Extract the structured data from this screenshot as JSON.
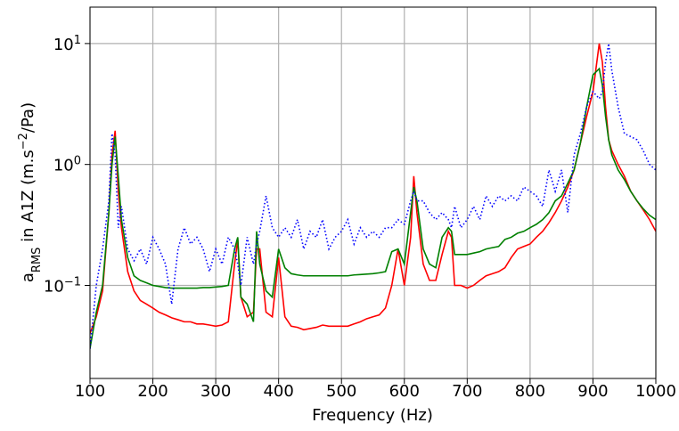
{
  "chart_data": {
    "type": "line",
    "x_label": "Frequency (Hz)",
    "y_label_parts": [
      {
        "text": "a"
      },
      {
        "text": "RMS",
        "style": "sub"
      },
      {
        "text": " in A1Z (m.s"
      },
      {
        "text": "−2",
        "style": "sup"
      },
      {
        "text": "/Pa)"
      }
    ],
    "xlim": [
      100,
      1000
    ],
    "xticks": [
      100,
      200,
      300,
      400,
      500,
      600,
      700,
      800,
      900,
      1000
    ],
    "ylim": [
      0.017,
      20
    ],
    "log_y": true,
    "grid": true,
    "yticks": [
      {
        "value": 0.1,
        "label": "10",
        "exponent": "−1"
      },
      {
        "value": 1,
        "label": "10",
        "exponent": "0"
      },
      {
        "value": 10,
        "label": "10",
        "exponent": "1"
      }
    ],
    "x": [
      100,
      110,
      120,
      130,
      135,
      140,
      145,
      150,
      160,
      170,
      180,
      190,
      200,
      210,
      220,
      230,
      240,
      250,
      260,
      270,
      280,
      290,
      300,
      310,
      320,
      330,
      335,
      340,
      350,
      360,
      365,
      370,
      380,
      390,
      400,
      410,
      420,
      430,
      440,
      450,
      460,
      470,
      480,
      490,
      500,
      510,
      520,
      530,
      540,
      550,
      560,
      570,
      580,
      590,
      600,
      610,
      615,
      620,
      630,
      640,
      650,
      660,
      670,
      675,
      680,
      690,
      700,
      710,
      720,
      730,
      740,
      750,
      760,
      770,
      780,
      790,
      800,
      810,
      820,
      830,
      840,
      850,
      860,
      870,
      880,
      890,
      900,
      910,
      915,
      920,
      925,
      930,
      940,
      950,
      960,
      970,
      980,
      990,
      1000
    ],
    "series": [
      {
        "color": "#ff0000",
        "linestyle": "solid",
        "values": [
          0.04,
          0.055,
          0.09,
          0.4,
          1.2,
          1.9,
          0.6,
          0.3,
          0.13,
          0.09,
          0.075,
          0.07,
          0.065,
          0.06,
          0.057,
          0.054,
          0.052,
          0.05,
          0.05,
          0.048,
          0.048,
          0.047,
          0.046,
          0.047,
          0.05,
          0.15,
          0.24,
          0.08,
          0.055,
          0.06,
          0.2,
          0.2,
          0.06,
          0.055,
          0.17,
          0.055,
          0.046,
          0.045,
          0.043,
          0.044,
          0.045,
          0.047,
          0.046,
          0.046,
          0.046,
          0.046,
          0.048,
          0.05,
          0.053,
          0.055,
          0.057,
          0.065,
          0.1,
          0.2,
          0.1,
          0.25,
          0.8,
          0.4,
          0.15,
          0.11,
          0.11,
          0.18,
          0.28,
          0.25,
          0.1,
          0.1,
          0.095,
          0.1,
          0.11,
          0.12,
          0.125,
          0.13,
          0.14,
          0.17,
          0.2,
          0.21,
          0.22,
          0.25,
          0.28,
          0.33,
          0.4,
          0.5,
          0.65,
          0.9,
          1.5,
          2.5,
          4,
          10,
          7,
          3,
          1.6,
          1.3,
          1.0,
          0.8,
          0.6,
          0.5,
          0.42,
          0.35,
          0.28
        ]
      },
      {
        "color": "#008000",
        "linestyle": "solid",
        "values": [
          0.03,
          0.06,
          0.1,
          0.4,
          1.0,
          1.7,
          0.8,
          0.35,
          0.17,
          0.12,
          0.11,
          0.105,
          0.1,
          0.098,
          0.096,
          0.095,
          0.095,
          0.095,
          0.095,
          0.095,
          0.096,
          0.096,
          0.097,
          0.098,
          0.1,
          0.2,
          0.25,
          0.08,
          0.07,
          0.05,
          0.28,
          0.15,
          0.09,
          0.08,
          0.2,
          0.14,
          0.125,
          0.122,
          0.12,
          0.12,
          0.12,
          0.12,
          0.12,
          0.12,
          0.12,
          0.12,
          0.122,
          0.123,
          0.124,
          0.125,
          0.127,
          0.13,
          0.19,
          0.2,
          0.15,
          0.4,
          0.65,
          0.5,
          0.2,
          0.15,
          0.14,
          0.25,
          0.3,
          0.28,
          0.18,
          0.18,
          0.18,
          0.185,
          0.19,
          0.2,
          0.205,
          0.21,
          0.24,
          0.25,
          0.27,
          0.28,
          0.3,
          0.32,
          0.35,
          0.4,
          0.5,
          0.55,
          0.7,
          0.9,
          1.5,
          3,
          5.5,
          6.2,
          4.5,
          2.5,
          1.6,
          1.2,
          0.9,
          0.75,
          0.6,
          0.5,
          0.43,
          0.38,
          0.35
        ]
      },
      {
        "color": "#0000ff",
        "linestyle": "dotted",
        "values": [
          0.03,
          0.1,
          0.2,
          0.5,
          1.8,
          1.2,
          0.3,
          0.45,
          0.2,
          0.16,
          0.2,
          0.15,
          0.25,
          0.2,
          0.15,
          0.07,
          0.2,
          0.3,
          0.22,
          0.25,
          0.2,
          0.13,
          0.2,
          0.15,
          0.25,
          0.2,
          0.15,
          0.1,
          0.25,
          0.15,
          0.22,
          0.28,
          0.55,
          0.3,
          0.25,
          0.3,
          0.25,
          0.35,
          0.2,
          0.28,
          0.25,
          0.35,
          0.2,
          0.25,
          0.28,
          0.35,
          0.22,
          0.3,
          0.25,
          0.28,
          0.25,
          0.3,
          0.3,
          0.35,
          0.32,
          0.5,
          0.6,
          0.5,
          0.5,
          0.4,
          0.35,
          0.4,
          0.35,
          0.3,
          0.45,
          0.3,
          0.35,
          0.45,
          0.35,
          0.55,
          0.45,
          0.55,
          0.5,
          0.55,
          0.5,
          0.65,
          0.6,
          0.55,
          0.45,
          0.9,
          0.6,
          0.9,
          0.4,
          1.2,
          1.8,
          3,
          4,
          3.5,
          4,
          7,
          10,
          6,
          3,
          1.8,
          1.7,
          1.6,
          1.3,
          1.0,
          0.9
        ]
      }
    ]
  }
}
